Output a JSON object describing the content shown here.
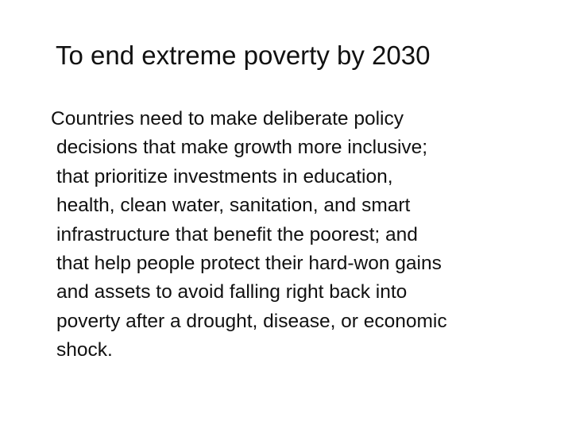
{
  "slide": {
    "title": "To end extreme poverty by 2030",
    "body_lines": [
      "Countries need to make deliberate policy",
      "decisions that make growth more inclusive;",
      "that prioritize investments in education,",
      "health, clean water, sanitation, and smart",
      "infrastructure that benefit the poorest; and",
      "that help people protect their hard-won gains",
      "and assets to avoid falling right back into",
      "poverty after a drought, disease, or economic",
      "shock."
    ]
  }
}
